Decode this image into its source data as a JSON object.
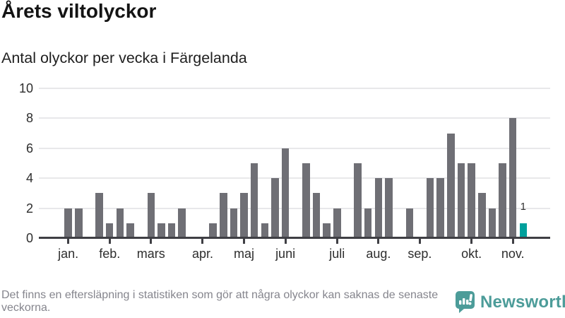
{
  "chart_data": {
    "type": "bar",
    "title": "Årets viltolyckor",
    "subtitle": "Antal olyckor per vecka i Färgelanda",
    "x_unit": "vecka",
    "values": [
      2,
      2,
      0,
      3,
      1,
      2,
      1,
      0,
      3,
      1,
      1,
      2,
      0,
      0,
      1,
      3,
      2,
      3,
      5,
      1,
      4,
      6,
      0,
      5,
      3,
      1,
      2,
      0,
      5,
      2,
      4,
      4,
      0,
      2,
      0,
      4,
      4,
      7,
      5,
      5,
      3,
      2,
      5,
      8,
      1
    ],
    "month_ticks": [
      {
        "label": "jan.",
        "week": 0
      },
      {
        "label": "feb.",
        "week": 4
      },
      {
        "label": "mars",
        "week": 8
      },
      {
        "label": "apr.",
        "week": 13
      },
      {
        "label": "maj",
        "week": 17
      },
      {
        "label": "juni",
        "week": 21
      },
      {
        "label": "juli",
        "week": 26
      },
      {
        "label": "aug.",
        "week": 30
      },
      {
        "label": "sep.",
        "week": 34
      },
      {
        "label": "okt.",
        "week": 39
      },
      {
        "label": "nov.",
        "week": 43
      }
    ],
    "yticks": [
      0,
      2,
      4,
      6,
      8,
      10
    ],
    "ylim": [
      0,
      10
    ],
    "grid": "horizontal",
    "legend": "none",
    "last_value_label": "1",
    "colors": {
      "bar": "#6F6F75",
      "highlight": "#00A09C",
      "gridline": "#E8E8EA",
      "axis": "#3F3F44"
    }
  },
  "footer": {
    "note": "Det finns en eftersläpning i statistiken som gör att några olyckor kan saknas de senaste veckorna.",
    "brand": "Newsworthy",
    "brand_color": "#4C9C99"
  }
}
